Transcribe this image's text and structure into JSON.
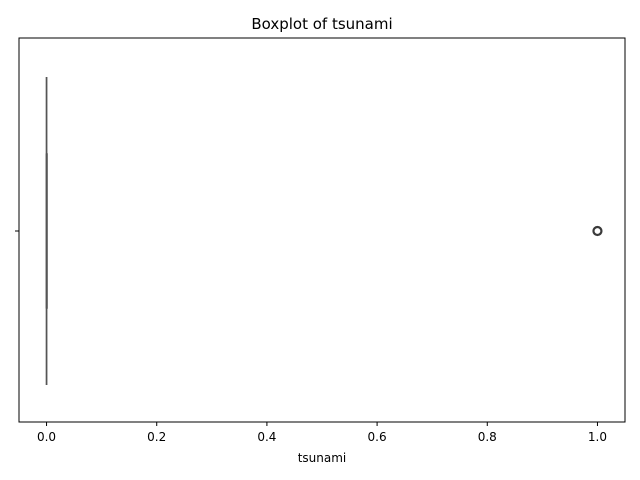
{
  "chart_data": {
    "type": "box",
    "title": "Boxplot of tsunami",
    "xlabel": "tsunami",
    "ylabel": "",
    "orientation": "horizontal",
    "xlim": [
      -0.05,
      1.05
    ],
    "xticks": [
      0.0,
      0.2,
      0.4,
      0.6,
      0.8,
      1.0
    ],
    "xtick_labels": [
      "0.0",
      "0.2",
      "0.4",
      "0.6",
      "0.8",
      "1.0"
    ],
    "grid": false,
    "series": [
      {
        "min": 0.0,
        "q1": 0.0,
        "median": 0.0,
        "q3": 0.0,
        "max": 0.0,
        "outliers": [
          1.0
        ],
        "color": "#4c72b0"
      }
    ]
  }
}
